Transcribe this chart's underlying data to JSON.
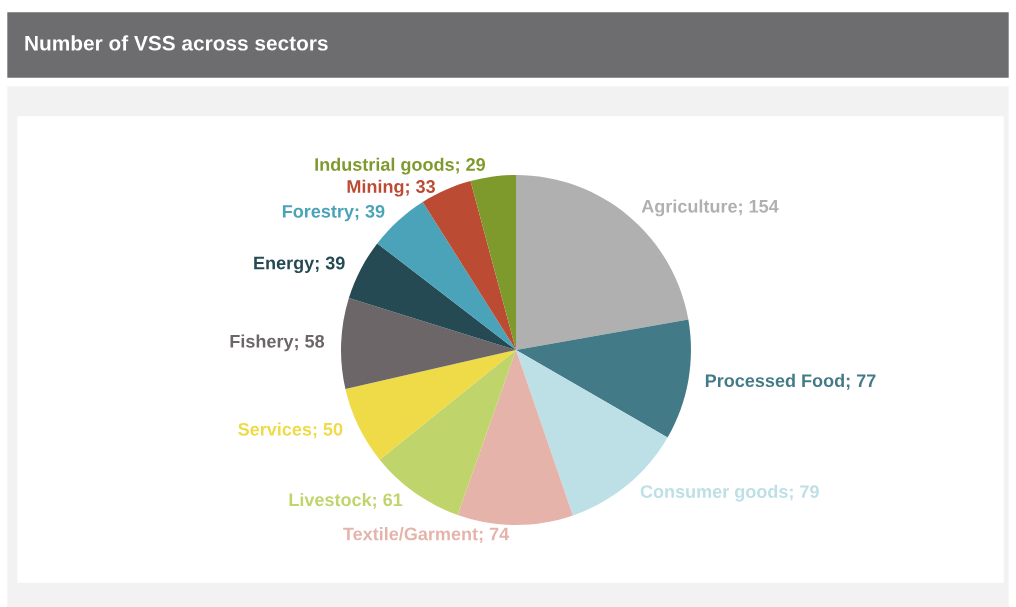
{
  "chart_data": {
    "type": "pie",
    "title": "Number of VSS across sectors",
    "categories": [
      "Agriculture; 154",
      "Processed Food; 77",
      "Consumer goods; 79",
      "Textile/Garment; 74",
      "Livestock; 61",
      "Services; 50",
      "Fishery; 58",
      "Energy; 39",
      "Forestry; 39",
      "Mining; 33",
      "Industrial goods; 29"
    ],
    "values": [
      154,
      77,
      79,
      74,
      61,
      50,
      58,
      39,
      39,
      33,
      29
    ],
    "colors": [
      "#b1b0b1",
      "#437a87",
      "#bddfe6",
      "#e6b3ab",
      "#c0d46c",
      "#efda47",
      "#6c6668",
      "#264a53",
      "#4aa3b8",
      "#bb4b33",
      "#7f9a2c"
    ],
    "legend": false
  }
}
